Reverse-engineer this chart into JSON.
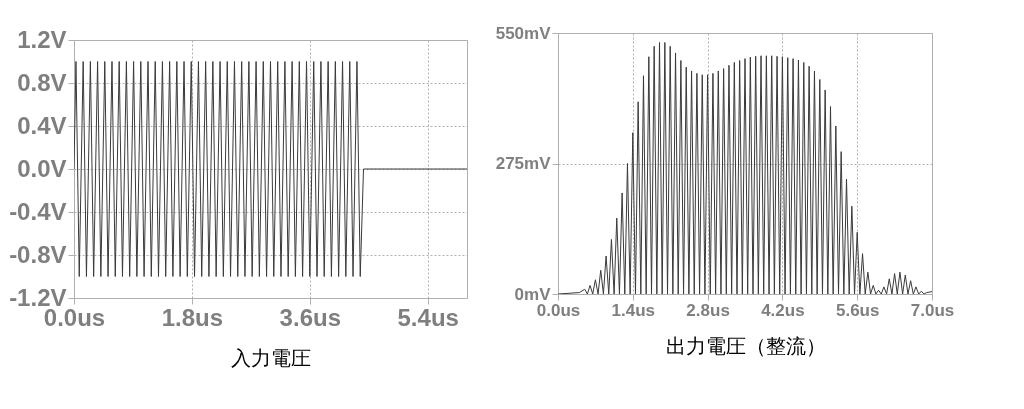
{
  "chart_data": [
    {
      "type": "line",
      "xlabel": "入力電圧",
      "xlim": [
        0,
        6.0
      ],
      "ylim": [
        -1.2,
        1.2
      ],
      "xticks": [
        {
          "value": 0,
          "label": "0.0us"
        },
        {
          "value": 1.8,
          "label": "1.8us"
        },
        {
          "value": 3.6,
          "label": "3.6us"
        },
        {
          "value": 5.4,
          "label": "5.4us"
        }
      ],
      "yticks": [
        {
          "value": -1.2,
          "label": "-1.2V"
        },
        {
          "value": -0.8,
          "label": "-0.8V"
        },
        {
          "value": -0.4,
          "label": "-0.4V"
        },
        {
          "value": 0,
          "label": "0.0V"
        },
        {
          "value": 0.4,
          "label": "0.4V"
        },
        {
          "value": 0.8,
          "label": "0.8V"
        },
        {
          "value": 1.2,
          "label": "1.2V"
        }
      ],
      "grid": true,
      "series": [
        {
          "color": "#3a3a3a",
          "x": [
            0,
            0.03,
            0.08,
            0.14,
            0.19,
            0.25,
            0.3,
            0.36,
            0.41,
            0.47,
            0.52,
            0.58,
            0.63,
            0.69,
            0.74,
            0.8,
            0.85,
            0.91,
            0.96,
            1.02,
            1.07,
            1.13,
            1.18,
            1.24,
            1.29,
            1.35,
            1.4,
            1.46,
            1.51,
            1.57,
            1.62,
            1.68,
            1.73,
            1.79,
            1.84,
            1.9,
            1.95,
            2.01,
            2.06,
            2.12,
            2.17,
            2.23,
            2.28,
            2.34,
            2.39,
            2.45,
            2.5,
            2.56,
            2.61,
            2.67,
            2.72,
            2.78,
            2.83,
            2.89,
            2.94,
            3.0,
            3.05,
            3.11,
            3.16,
            3.22,
            3.27,
            3.33,
            3.38,
            3.44,
            3.49,
            3.55,
            3.6,
            3.66,
            3.71,
            3.77,
            3.82,
            3.88,
            3.93,
            3.99,
            4.04,
            4.1,
            4.15,
            4.21,
            4.26,
            4.32,
            4.37,
            4.42,
            6.0
          ],
          "values": [
            0,
            1.0,
            -1.0,
            1.0,
            -1.0,
            1.0,
            -1.0,
            1.0,
            -1.0,
            1.0,
            -1.0,
            1.0,
            -1.0,
            1.0,
            -1.0,
            1.0,
            -1.0,
            1.0,
            -1.0,
            1.0,
            -1.0,
            1.0,
            -1.0,
            1.0,
            -1.0,
            1.0,
            -1.0,
            1.0,
            -1.0,
            1.0,
            -1.0,
            1.0,
            -1.0,
            1.0,
            -1.0,
            1.0,
            -1.0,
            1.0,
            -1.0,
            1.0,
            -1.0,
            1.0,
            -1.0,
            1.0,
            -1.0,
            1.0,
            -1.0,
            1.0,
            -1.0,
            1.0,
            -1.0,
            1.0,
            -1.0,
            1.0,
            -1.0,
            1.0,
            -1.0,
            1.0,
            -1.0,
            1.0,
            -1.0,
            1.0,
            -1.0,
            1.0,
            -1.0,
            1.0,
            -1.0,
            1.0,
            -1.0,
            1.0,
            -1.0,
            1.0,
            -1.0,
            1.0,
            -1.0,
            1.0,
            -1.0,
            1.0,
            -1.0,
            1.0,
            -1.0,
            0,
            0
          ]
        }
      ]
    },
    {
      "type": "line",
      "xlabel": "出力電圧（整流）",
      "xlim": [
        0,
        7.0
      ],
      "ylim": [
        0,
        550
      ],
      "xticks": [
        {
          "value": 0,
          "label": "0.0us"
        },
        {
          "value": 1.4,
          "label": "1.4us"
        },
        {
          "value": 2.8,
          "label": "2.8us"
        },
        {
          "value": 4.2,
          "label": "4.2us"
        },
        {
          "value": 5.6,
          "label": "5.6us"
        },
        {
          "value": 7.0,
          "label": "7.0us"
        }
      ],
      "yticks": [
        {
          "value": 0,
          "label": "0mV"
        },
        {
          "value": 275,
          "label": "275mV"
        },
        {
          "value": 550,
          "label": "550mV"
        }
      ],
      "grid": true,
      "series": [
        {
          "color": "#3a3a3a",
          "x": [
            0,
            0.4,
            0.5,
            0.55,
            0.6,
            0.65,
            0.7,
            0.75,
            0.8,
            0.85,
            0.9,
            0.95,
            1.0,
            1.05,
            1.1,
            1.15,
            1.2,
            1.25,
            1.3,
            1.35,
            1.4,
            1.45,
            1.5,
            1.55,
            1.6,
            1.65,
            1.7,
            1.75,
            1.8,
            1.85,
            1.9,
            1.95,
            2.0,
            2.05,
            2.1,
            2.15,
            2.2,
            2.25,
            2.3,
            2.35,
            2.4,
            2.45,
            2.5,
            2.55,
            2.6,
            2.65,
            2.7,
            2.75,
            2.8,
            2.85,
            2.9,
            2.95,
            3.0,
            3.05,
            3.1,
            3.15,
            3.2,
            3.25,
            3.3,
            3.35,
            3.4,
            3.45,
            3.5,
            3.55,
            3.6,
            3.65,
            3.7,
            3.75,
            3.8,
            3.85,
            3.9,
            3.95,
            4.0,
            4.05,
            4.1,
            4.15,
            4.2,
            4.25,
            4.3,
            4.35,
            4.4,
            4.45,
            4.5,
            4.55,
            4.6,
            4.65,
            4.7,
            4.75,
            4.8,
            4.85,
            4.9,
            4.95,
            5.0,
            5.05,
            5.1,
            5.15,
            5.2,
            5.25,
            5.3,
            5.35,
            5.4,
            5.45,
            5.5,
            5.55,
            5.6,
            5.65,
            5.7,
            5.75,
            5.8,
            5.85,
            5.9,
            5.95,
            6.0,
            6.05,
            6.1,
            6.15,
            6.2,
            6.25,
            6.3,
            6.35,
            6.4,
            6.45,
            6.5,
            6.55,
            6.6,
            6.65,
            6.7,
            6.75,
            6.8,
            6.85,
            6.9,
            7.0
          ],
          "values": [
            0,
            3,
            10,
            0,
            18,
            0,
            30,
            0,
            50,
            0,
            80,
            0,
            115,
            0,
            160,
            0,
            213,
            0,
            275,
            0,
            340,
            0,
            405,
            0,
            460,
            0,
            500,
            0,
            522,
            0,
            530,
            0,
            530,
            0,
            522,
            0,
            508,
            0,
            492,
            0,
            478,
            0,
            470,
            0,
            465,
            0,
            462,
            0,
            462,
            0,
            465,
            0,
            470,
            0,
            475,
            0,
            482,
            0,
            488,
            0,
            492,
            0,
            496,
            0,
            499,
            0,
            501,
            0,
            502,
            0,
            502,
            0,
            502,
            0,
            501,
            0,
            500,
            0,
            498,
            0,
            496,
            0,
            493,
            0,
            488,
            0,
            480,
            0,
            470,
            0,
            452,
            0,
            430,
            0,
            395,
            0,
            354,
            0,
            300,
            0,
            242,
            0,
            185,
            0,
            130,
            0,
            85,
            0,
            46,
            0,
            18,
            0,
            8,
            0,
            15,
            0,
            32,
            0,
            43,
            0,
            46,
            0,
            40,
            0,
            28,
            0,
            15,
            0,
            6,
            0,
            3,
            5
          ]
        }
      ]
    }
  ]
}
